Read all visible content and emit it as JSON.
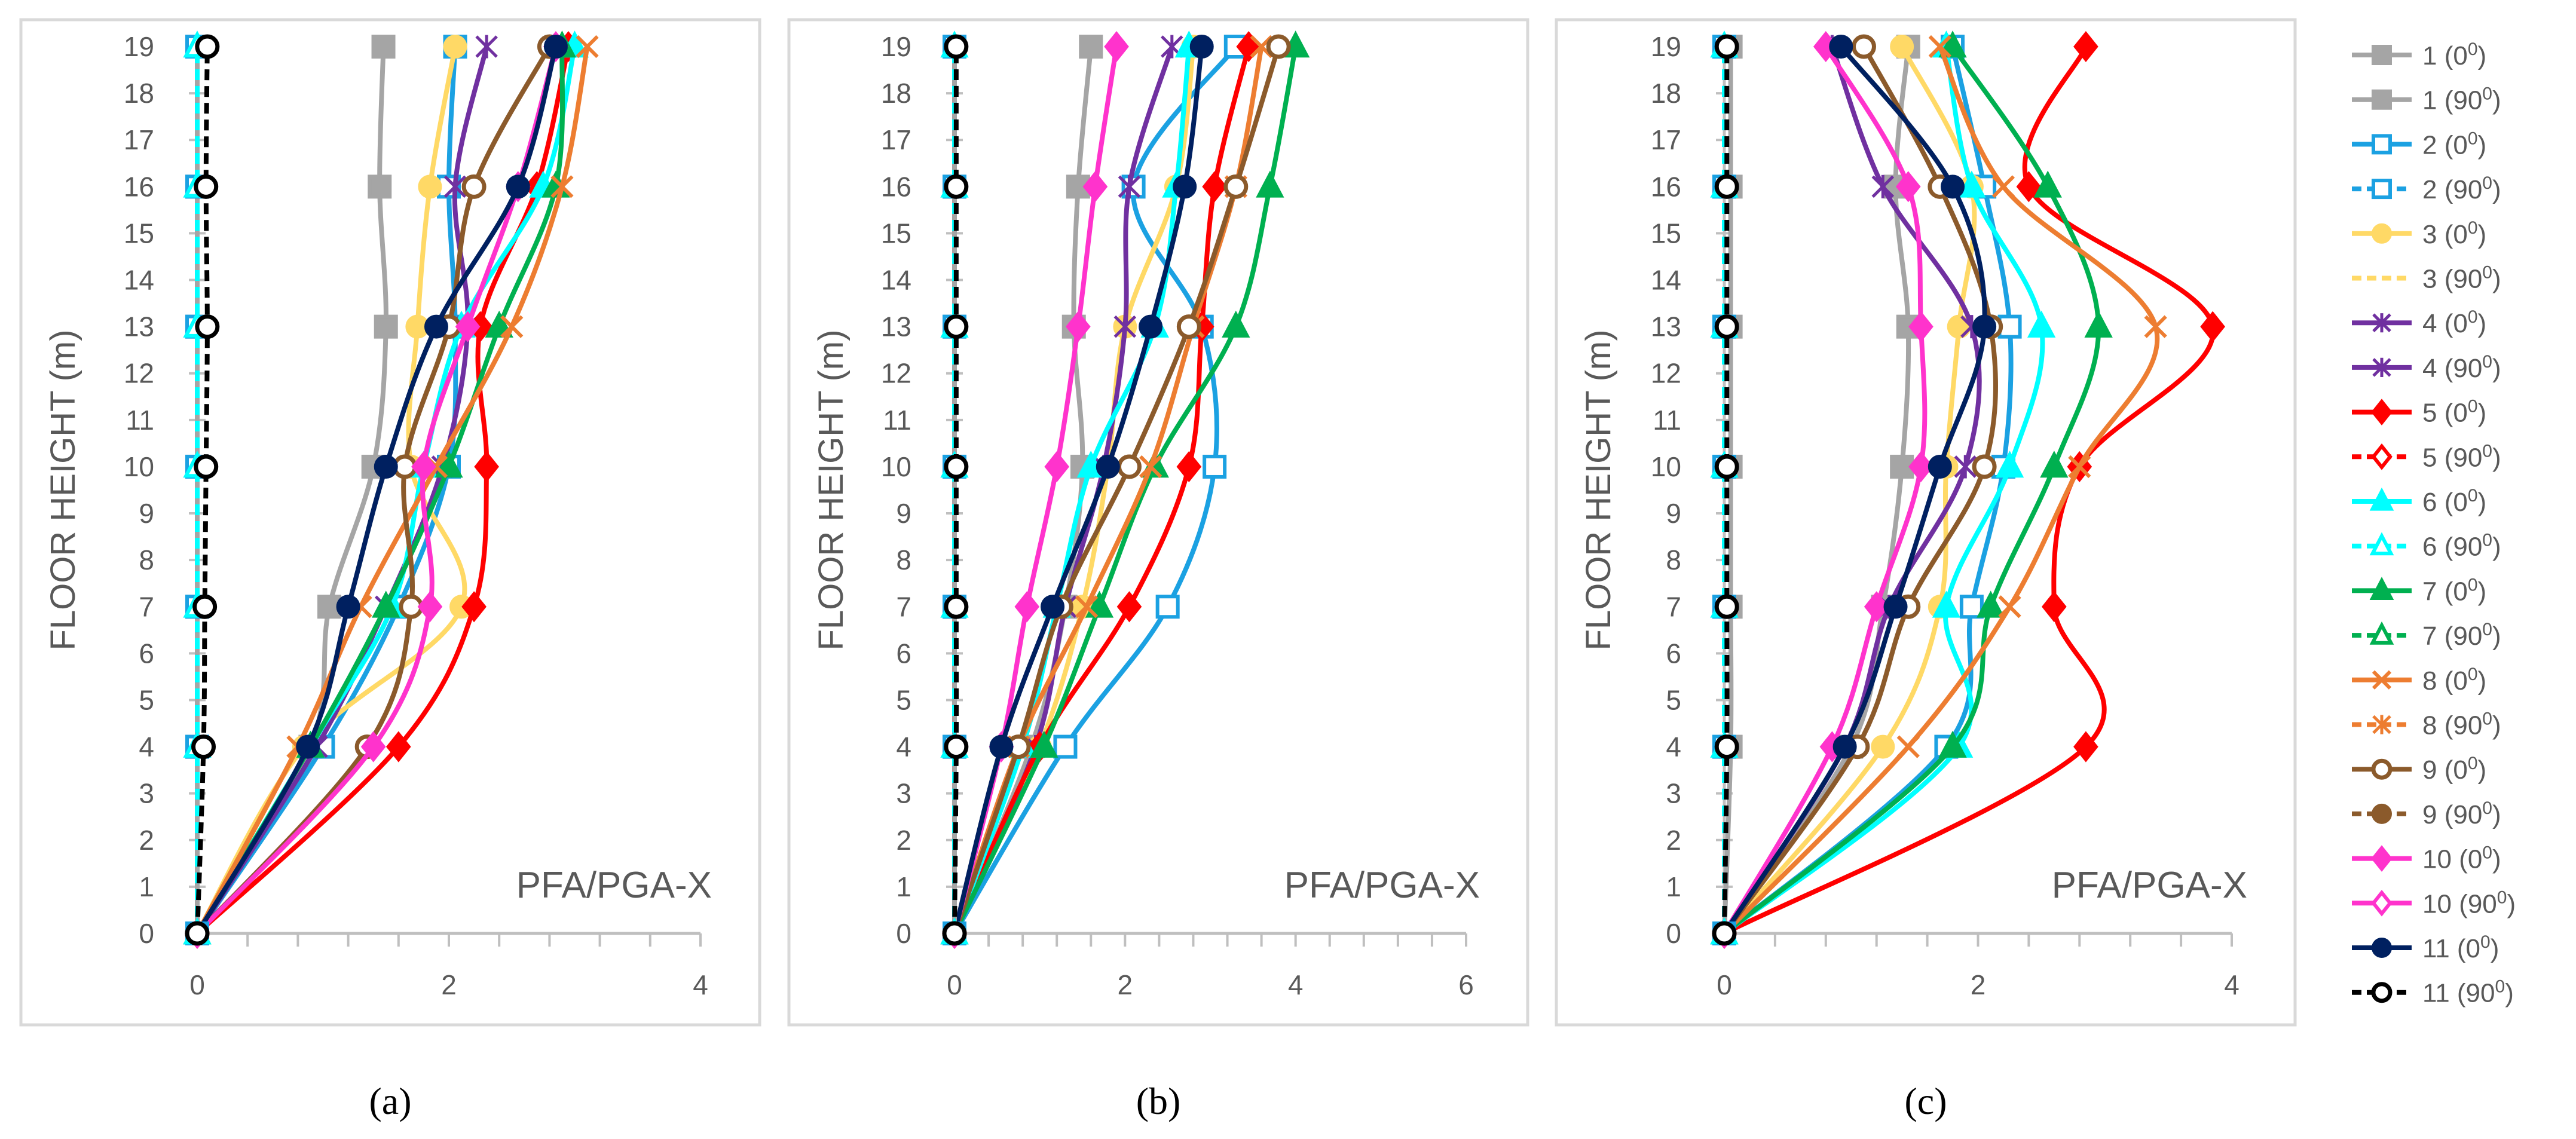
{
  "chart_data": {
    "type": "line",
    "orientation": "profile",
    "ylabel": "FLOOR HEIGHT (m)",
    "legend_position": "right",
    "legend": [
      {
        "id": "1",
        "label": "1 (0",
        "sup": "0",
        "tail": ")",
        "color": "#A5A5A5",
        "marker": "square",
        "open": false,
        "dash": false
      },
      {
        "id": "1b",
        "label": "1 (90",
        "sup": "0",
        "tail": ")",
        "color": "#A5A5A5",
        "marker": "square",
        "open": false,
        "dash": false
      },
      {
        "id": "2",
        "label": "2 (0",
        "sup": "0",
        "tail": ")",
        "color": "#1BA1E2",
        "marker": "square",
        "open": true,
        "dash": false
      },
      {
        "id": "2b",
        "label": "2 (90",
        "sup": "0",
        "tail": ")",
        "color": "#1BA1E2",
        "marker": "square",
        "open": true,
        "dash": true
      },
      {
        "id": "3",
        "label": "3 (0",
        "sup": "0",
        "tail": ")",
        "color": "#FFD966",
        "marker": "circle",
        "open": false,
        "dash": false
      },
      {
        "id": "3b",
        "label": "3 (90",
        "sup": "0",
        "tail": ")",
        "color": "#FFD966",
        "marker": "none",
        "open": false,
        "dash": true
      },
      {
        "id": "4",
        "label": "4 (0",
        "sup": "0",
        "tail": ")",
        "color": "#7030A0",
        "marker": "star",
        "open": false,
        "dash": false
      },
      {
        "id": "4b",
        "label": "4 (90",
        "sup": "0",
        "tail": ")",
        "color": "#7030A0",
        "marker": "star",
        "open": false,
        "dash": false
      },
      {
        "id": "5",
        "label": "5 (0",
        "sup": "0",
        "tail": ")",
        "color": "#FF0000",
        "marker": "diamond",
        "open": false,
        "dash": false
      },
      {
        "id": "5b",
        "label": "5 (90",
        "sup": "0",
        "tail": ")",
        "color": "#FF0000",
        "marker": "diamond",
        "open": true,
        "dash": true
      },
      {
        "id": "6",
        "label": "6 (0",
        "sup": "0",
        "tail": ")",
        "color": "#00FFFF",
        "marker": "triangle",
        "open": false,
        "dash": false
      },
      {
        "id": "6b",
        "label": "6 (90",
        "sup": "0",
        "tail": ")",
        "color": "#00FFFF",
        "marker": "triangle",
        "open": true,
        "dash": true
      },
      {
        "id": "7",
        "label": "7 (0",
        "sup": "0",
        "tail": ")",
        "color": "#00B050",
        "marker": "triangle",
        "open": false,
        "dash": false
      },
      {
        "id": "7b",
        "label": "7 (90",
        "sup": "0",
        "tail": ")",
        "color": "#00B050",
        "marker": "triangle",
        "open": true,
        "dash": true
      },
      {
        "id": "8",
        "label": "8 (0",
        "sup": "0",
        "tail": ")",
        "color": "#ED7D31",
        "marker": "x",
        "open": false,
        "dash": false
      },
      {
        "id": "8b",
        "label": "8 (90",
        "sup": "0",
        "tail": ")",
        "color": "#ED7D31",
        "marker": "star",
        "open": false,
        "dash": true
      },
      {
        "id": "9",
        "label": "9 (0",
        "sup": "0",
        "tail": ")",
        "color": "#8B5A2B",
        "marker": "circle",
        "open": true,
        "dash": false
      },
      {
        "id": "9b",
        "label": "9 (90",
        "sup": "0",
        "tail": ")",
        "color": "#8B5A2B",
        "marker": "circle",
        "open": false,
        "dash": true
      },
      {
        "id": "10",
        "label": "10 (0",
        "sup": "0",
        "tail": ")",
        "color": "#FF33CC",
        "marker": "diamond",
        "open": false,
        "dash": false
      },
      {
        "id": "10b",
        "label": "10 (90",
        "sup": "0",
        "tail": ")",
        "color": "#FF33CC",
        "marker": "diamond",
        "open": true,
        "dash": false
      },
      {
        "id": "11",
        "label": "11 (0",
        "sup": "0",
        "tail": ")",
        "color": "#002060",
        "marker": "circle",
        "open": false,
        "dash": false
      },
      {
        "id": "11b",
        "label": "11 (90",
        "sup": "0",
        "tail": ")",
        "color": "#000000",
        "marker": "circle",
        "open": true,
        "dash": true
      }
    ],
    "panels": [
      {
        "caption": "(a)",
        "annotation": "PFA/PGA-X",
        "floors": [
          0,
          1,
          2,
          3,
          4,
          5,
          6,
          7,
          8,
          9,
          10,
          11,
          12,
          13,
          14,
          15,
          16,
          17,
          18,
          19
        ],
        "xlim": [
          0,
          4
        ],
        "xticks": [
          0,
          2,
          4
        ],
        "ylim": [
          0,
          19
        ],
        "marker_floors": [
          0,
          4,
          7,
          10,
          13,
          16,
          19
        ],
        "series": [
          {
            "id": "1",
            "x": [
              0,
              0.9,
              1.05,
              1.4,
              1.5,
              1.45,
              1.48
            ]
          },
          {
            "id": "2",
            "x": [
              0,
              1.0,
              1.6,
              2.0,
              2.05,
              2.0,
              2.05
            ]
          },
          {
            "id": "3",
            "x": [
              0,
              0.85,
              2.1,
              1.7,
              1.75,
              1.85,
              2.05
            ]
          },
          {
            "id": "4",
            "x": [
              0,
              0.95,
              1.5,
              1.95,
              2.15,
              2.05,
              2.3
            ]
          },
          {
            "id": "5",
            "x": [
              0,
              1.6,
              2.2,
              2.3,
              2.25,
              2.7,
              2.95
            ]
          },
          {
            "id": "6",
            "x": [
              0,
              0.9,
              1.55,
              1.8,
              2.1,
              2.75,
              3.0
            ]
          },
          {
            "id": "7",
            "x": [
              0,
              0.9,
              1.5,
              2.0,
              2.4,
              2.85,
              2.9
            ]
          },
          {
            "id": "8",
            "x": [
              0,
              0.8,
              1.3,
              1.9,
              2.5,
              2.9,
              3.1
            ]
          },
          {
            "id": "9",
            "x": [
              0,
              1.35,
              1.7,
              1.65,
              2.0,
              2.2,
              2.8
            ]
          },
          {
            "id": "10",
            "x": [
              0,
              1.4,
              1.85,
              1.8,
              2.15,
              2.55,
              2.85
            ]
          },
          {
            "id": "11",
            "x": [
              0,
              0.88,
              1.2,
              1.5,
              1.9,
              2.55,
              2.85
            ]
          },
          {
            "id": "1b",
            "x": [
              0,
              0.0,
              0.0,
              0.0,
              0.0,
              0.0,
              0.0
            ]
          },
          {
            "id": "2b",
            "x": [
              0,
              0.0,
              0.0,
              0.0,
              0.0,
              0.0,
              0.0
            ]
          },
          {
            "id": "6b",
            "x": [
              0,
              0.0,
              0.0,
              0.0,
              0.0,
              0.0,
              0.0
            ]
          },
          {
            "id": "11b",
            "x": [
              0,
              0.05,
              0.06,
              0.07,
              0.08,
              0.07,
              0.08
            ]
          }
        ]
      },
      {
        "caption": "(b)",
        "annotation": "PFA/PGA-X",
        "floors": [
          0,
          1,
          2,
          3,
          4,
          5,
          6,
          7,
          8,
          9,
          10,
          11,
          12,
          13,
          14,
          15,
          16,
          17,
          18,
          19
        ],
        "xlim": [
          0,
          6
        ],
        "xticks": [
          0,
          2,
          4,
          6
        ],
        "ylim": [
          0,
          19
        ],
        "marker_floors": [
          0,
          4,
          7,
          10,
          13,
          16,
          19
        ],
        "series": [
          {
            "id": "1",
            "x": [
              0,
              0.9,
              1.3,
              1.5,
              1.4,
              1.45,
              1.6
            ]
          },
          {
            "id": "2",
            "x": [
              0,
              1.3,
              2.5,
              3.05,
              2.9,
              2.1,
              3.3
            ]
          },
          {
            "id": "3",
            "x": [
              0,
              1.0,
              1.5,
              1.8,
              2.0,
              2.6,
              2.8
            ]
          },
          {
            "id": "4",
            "x": [
              0,
              0.95,
              1.3,
              1.75,
              2.0,
              2.05,
              2.55
            ]
          },
          {
            "id": "5",
            "x": [
              0,
              1.0,
              2.05,
              2.75,
              2.9,
              3.05,
              3.45
            ]
          },
          {
            "id": "6",
            "x": [
              0,
              0.8,
              1.2,
              1.6,
              2.35,
              2.6,
              2.75
            ]
          },
          {
            "id": "7",
            "x": [
              0,
              1.05,
              1.7,
              2.35,
              3.3,
              3.7,
              4.0
            ]
          },
          {
            "id": "8",
            "x": [
              0,
              0.75,
              1.55,
              2.3,
              2.8,
              3.3,
              3.6
            ]
          },
          {
            "id": "9",
            "x": [
              0,
              0.75,
              1.25,
              2.05,
              2.75,
              3.3,
              3.8
            ]
          },
          {
            "id": "10",
            "x": [
              0,
              0.55,
              0.85,
              1.2,
              1.45,
              1.65,
              1.9
            ]
          },
          {
            "id": "11",
            "x": [
              0,
              0.55,
              1.15,
              1.8,
              2.3,
              2.7,
              2.9
            ]
          },
          {
            "id": "1b",
            "x": [
              0,
              0.0,
              0.0,
              0.0,
              0.0,
              0.0,
              0.0
            ]
          },
          {
            "id": "2b",
            "x": [
              0,
              0.0,
              0.0,
              0.0,
              0.0,
              0.0,
              0.0
            ]
          },
          {
            "id": "6b",
            "x": [
              0,
              0.0,
              0.0,
              0.0,
              0.0,
              0.0,
              0.0
            ]
          },
          {
            "id": "11b",
            "x": [
              0,
              0.02,
              0.02,
              0.02,
              0.02,
              0.02,
              0.02
            ]
          }
        ]
      },
      {
        "caption": "(c)",
        "annotation": "PFA/PGA-X",
        "floors": [
          0,
          1,
          2,
          3,
          4,
          5,
          6,
          7,
          8,
          9,
          10,
          11,
          12,
          13,
          14,
          15,
          16,
          17,
          18,
          19
        ],
        "xlim": [
          0,
          4
        ],
        "xticks": [
          0,
          2,
          4
        ],
        "ylim": [
          0,
          19
        ],
        "marker_floors": [
          0,
          4,
          7,
          10,
          13,
          16,
          19
        ],
        "series": [
          {
            "id": "1",
            "x": [
              0,
              1.0,
              1.25,
              1.4,
              1.45,
              1.35,
              1.45
            ]
          },
          {
            "id": "2",
            "x": [
              0,
              1.75,
              1.95,
              2.2,
              2.25,
              2.05,
              1.8
            ]
          },
          {
            "id": "3",
            "x": [
              0,
              1.25,
              1.7,
              1.75,
              1.85,
              1.95,
              1.4
            ]
          },
          {
            "id": "4",
            "x": [
              0,
              0.95,
              1.3,
              1.9,
              1.95,
              1.25,
              0.85
            ]
          },
          {
            "id": "5",
            "x": [
              0,
              2.85,
              2.6,
              2.8,
              3.85,
              2.4,
              2.85
            ]
          },
          {
            "id": "6",
            "x": [
              0,
              1.85,
              1.75,
              2.25,
              2.5,
              1.95,
              1.75
            ]
          },
          {
            "id": "7",
            "x": [
              0,
              1.8,
              2.1,
              2.6,
              2.95,
              2.55,
              1.8
            ]
          },
          {
            "id": "8",
            "x": [
              0,
              1.45,
              2.25,
              2.8,
              3.4,
              2.2,
              1.7
            ]
          },
          {
            "id": "9",
            "x": [
              0,
              1.05,
              1.45,
              2.05,
              2.1,
              1.7,
              1.1
            ]
          },
          {
            "id": "10",
            "x": [
              0,
              0.85,
              1.2,
              1.55,
              1.55,
              1.45,
              0.8
            ]
          },
          {
            "id": "11",
            "x": [
              0,
              0.95,
              1.35,
              1.7,
              2.05,
              1.8,
              0.92
            ]
          },
          {
            "id": "1b",
            "x": [
              0,
              0.05,
              0.05,
              0.05,
              0.05,
              0.05,
              0.05
            ]
          },
          {
            "id": "2b",
            "x": [
              0,
              0.0,
              0.0,
              0.0,
              0.0,
              0.0,
              0.0
            ]
          },
          {
            "id": "6b",
            "x": [
              0,
              0.0,
              0.0,
              0.0,
              0.0,
              0.0,
              0.0
            ]
          },
          {
            "id": "11b",
            "x": [
              0,
              0.02,
              0.02,
              0.02,
              0.02,
              0.02,
              0.02
            ]
          }
        ]
      }
    ]
  }
}
